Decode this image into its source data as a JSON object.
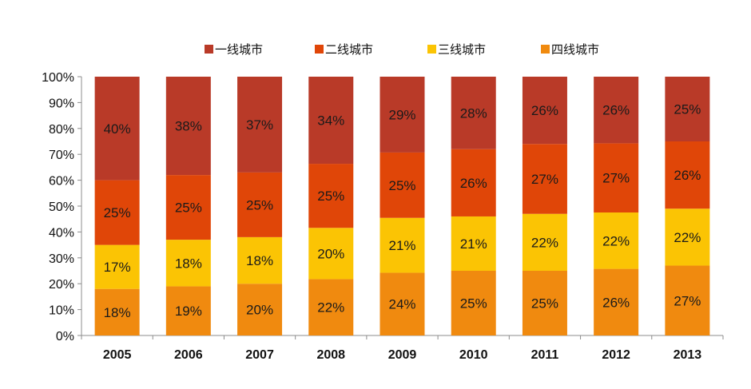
{
  "chart_data": {
    "type": "bar",
    "stacked": true,
    "percent_stacked": true,
    "title": "",
    "xlabel": "",
    "ylabel": "",
    "ylim": [
      0,
      100
    ],
    "yticks": [
      "0%",
      "10%",
      "20%",
      "30%",
      "40%",
      "50%",
      "60%",
      "70%",
      "80%",
      "90%",
      "100%"
    ],
    "categories": [
      "2005",
      "2006",
      "2007",
      "2008",
      "2009",
      "2010",
      "2011",
      "2012",
      "2013"
    ],
    "legend_position": "top",
    "series": [
      {
        "name": "四线城市",
        "color": "#F08A0F",
        "values": [
          18,
          19,
          20,
          22,
          24,
          25,
          25,
          26,
          27
        ],
        "labels": [
          "18%",
          "19%",
          "20%",
          "22%",
          "24%",
          "25%",
          "25%",
          "26%",
          "27%"
        ]
      },
      {
        "name": "三线城市",
        "color": "#FBC404",
        "values": [
          17,
          18,
          18,
          20,
          21,
          21,
          22,
          22,
          22
        ],
        "labels": [
          "17%",
          "18%",
          "18%",
          "20%",
          "21%",
          "21%",
          "22%",
          "22%",
          "22%"
        ]
      },
      {
        "name": "二线城市",
        "color": "#E04608",
        "values": [
          25,
          25,
          25,
          25,
          25,
          26,
          27,
          27,
          26
        ],
        "labels": [
          "25%",
          "25%",
          "25%",
          "25%",
          "25%",
          "26%",
          "27%",
          "27%",
          "26%"
        ]
      },
      {
        "name": "一线城市",
        "color": "#B93A28",
        "values": [
          40,
          38,
          37,
          34,
          29,
          28,
          26,
          26,
          25
        ],
        "labels": [
          "40%",
          "38%",
          "37%",
          "34%",
          "29%",
          "28%",
          "26%",
          "26%",
          "25%"
        ]
      }
    ],
    "legend_order": [
      "一线城市",
      "二线城市",
      "三线城市",
      "四线城市"
    ]
  }
}
